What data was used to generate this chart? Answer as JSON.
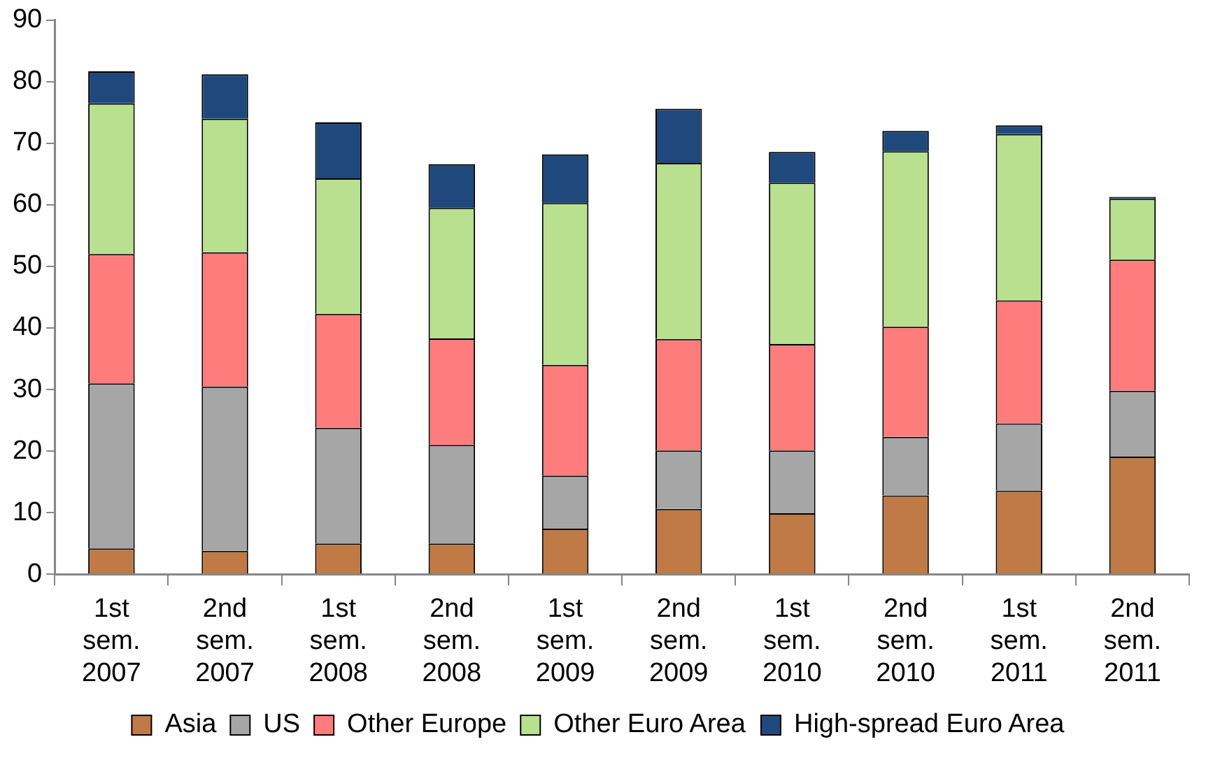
{
  "chart_data": {
    "type": "bar",
    "stacked": true,
    "categories": [
      "1st sem. 2007",
      "2nd sem. 2007",
      "1st sem. 2008",
      "2nd sem. 2008",
      "1st sem. 2009",
      "2nd sem. 2009",
      "1st sem. 2010",
      "2nd sem. 2010",
      "1st sem. 2011",
      "2nd sem. 2011"
    ],
    "series": [
      {
        "name": "Asia",
        "color": "#c07a45",
        "values": [
          4.2,
          3.8,
          5,
          5,
          7.4,
          10.6,
          9.9,
          12.8,
          13.6,
          19.1
        ]
      },
      {
        "name": "US",
        "color": "#a6a6a6",
        "values": [
          26.8,
          26.7,
          18.8,
          16,
          8.6,
          9.5,
          10.2,
          9.5,
          10.9,
          10.7
        ]
      },
      {
        "name": "Other Europe",
        "color": "#ff7c7c",
        "values": [
          21,
          21.8,
          18.5,
          17.3,
          18,
          18.1,
          17.3,
          17.9,
          20,
          21.3
        ]
      },
      {
        "name": "Other Euro Area",
        "color": "#b8e08f",
        "values": [
          24.5,
          21.7,
          22,
          21.2,
          26.3,
          28.6,
          26.2,
          28.5,
          27,
          9.9
        ]
      },
      {
        "name": "High-spread Euro Area",
        "color": "#1f497d",
        "values": [
          5.2,
          7.2,
          9.1,
          7.1,
          7.9,
          8.8,
          5,
          3.3,
          1.4,
          0.3
        ]
      }
    ],
    "ylim": [
      0,
      90
    ],
    "yticks": [
      0,
      10,
      20,
      30,
      40,
      50,
      60,
      70,
      80,
      90
    ],
    "grid": false,
    "legend": "bottom"
  }
}
